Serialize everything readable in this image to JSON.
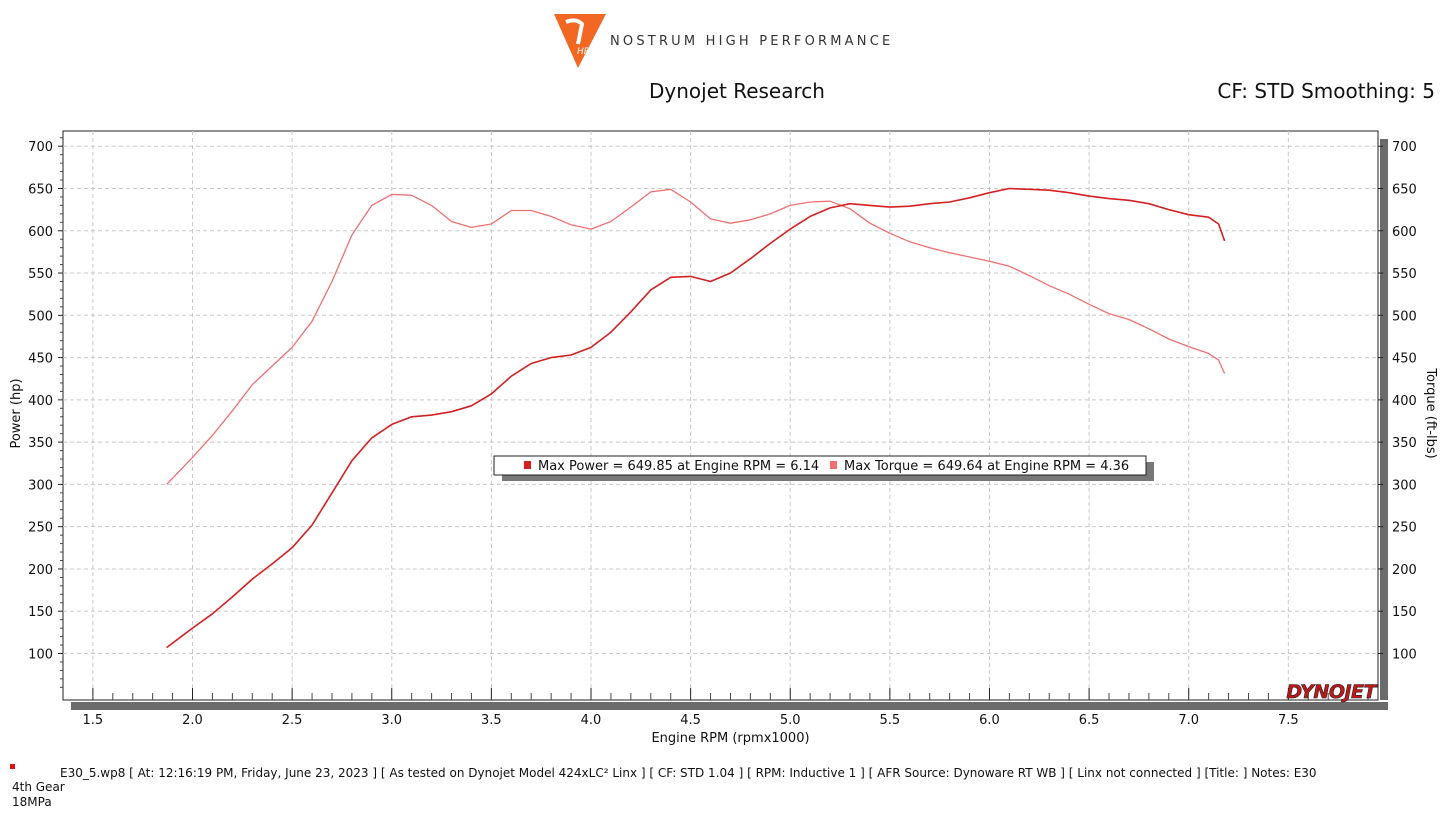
{
  "header": {
    "brand": "NOSTRUM HIGH PERFORMANCE",
    "logo_mark": "HP",
    "title": "Dynojet Research",
    "cf_smoothing": "CF: STD Smoothing: 5"
  },
  "colors": {
    "power": "#d42020",
    "torque": "#f07070",
    "logo": "#f26722",
    "axis_bar": "#6b6b6b",
    "grid": "#c8c8c8"
  },
  "chart_data": {
    "type": "line",
    "xlabel": "Engine RPM (rpmx1000)",
    "ylabel_left": "Power (hp)",
    "ylabel_right": "Torque (ft-lbs)",
    "xlim": [
      1.35,
      7.95
    ],
    "ylim": [
      45,
      718
    ],
    "xticks": [
      1.5,
      2.0,
      2.5,
      3.0,
      3.5,
      4.0,
      4.5,
      5.0,
      5.5,
      6.0,
      6.5,
      7.0,
      7.5
    ],
    "xtick_labels": [
      "1.5",
      "2.0",
      "2.5",
      "3.0",
      "3.5",
      "4.0",
      "4.5",
      "5.0",
      "5.5",
      "6.0",
      "6.5",
      "7.0",
      "7.5"
    ],
    "yticks": [
      100,
      150,
      200,
      250,
      300,
      350,
      400,
      450,
      500,
      550,
      600,
      650,
      700
    ],
    "ytick_labels": [
      "100",
      "150",
      "200",
      "250",
      "300",
      "350",
      "400",
      "450",
      "500",
      "550",
      "600",
      "650",
      "700"
    ],
    "grid": true,
    "legend_position": "center",
    "series": [
      {
        "name": "Power",
        "color": "#d42020",
        "x": [
          1.87,
          2.0,
          2.1,
          2.2,
          2.3,
          2.4,
          2.5,
          2.6,
          2.7,
          2.8,
          2.9,
          3.0,
          3.1,
          3.2,
          3.3,
          3.4,
          3.5,
          3.6,
          3.7,
          3.8,
          3.9,
          4.0,
          4.1,
          4.2,
          4.3,
          4.4,
          4.5,
          4.6,
          4.7,
          4.8,
          4.9,
          5.0,
          5.1,
          5.2,
          5.3,
          5.4,
          5.5,
          5.6,
          5.7,
          5.8,
          5.9,
          6.0,
          6.1,
          6.2,
          6.3,
          6.4,
          6.5,
          6.6,
          6.7,
          6.8,
          6.9,
          7.0,
          7.1,
          7.15,
          7.18
        ],
        "y": [
          107,
          130,
          147,
          167,
          188,
          206,
          225,
          252,
          290,
          328,
          355,
          371,
          380,
          382,
          386,
          393,
          407,
          428,
          443,
          450,
          453,
          462,
          480,
          504,
          530,
          545,
          546,
          540,
          550,
          567,
          585,
          602,
          617,
          627,
          632,
          630,
          628,
          629,
          632,
          634,
          639,
          645,
          650,
          649,
          648,
          645,
          641,
          638,
          636,
          632,
          625,
          619,
          616,
          608,
          588
        ]
      },
      {
        "name": "Torque",
        "color": "#f07070",
        "x": [
          1.87,
          2.0,
          2.1,
          2.2,
          2.3,
          2.4,
          2.5,
          2.6,
          2.7,
          2.8,
          2.9,
          3.0,
          3.1,
          3.2,
          3.3,
          3.4,
          3.5,
          3.6,
          3.7,
          3.8,
          3.9,
          4.0,
          4.1,
          4.2,
          4.3,
          4.4,
          4.5,
          4.6,
          4.7,
          4.8,
          4.9,
          5.0,
          5.1,
          5.2,
          5.3,
          5.4,
          5.5,
          5.6,
          5.7,
          5.8,
          5.9,
          6.0,
          6.1,
          6.2,
          6.3,
          6.4,
          6.5,
          6.6,
          6.7,
          6.8,
          6.9,
          7.0,
          7.1,
          7.15,
          7.18
        ],
        "y": [
          300,
          332,
          358,
          387,
          418,
          440,
          462,
          493,
          540,
          595,
          630,
          643,
          642,
          630,
          611,
          604,
          608,
          624,
          624,
          617,
          607,
          602,
          611,
          628,
          646,
          649,
          634,
          614,
          609,
          613,
          620,
          630,
          634,
          635,
          626,
          609,
          597,
          587,
          580,
          574,
          569,
          564,
          558,
          547,
          535,
          525,
          513,
          502,
          495,
          484,
          472,
          463,
          455,
          447,
          431
        ]
      }
    ],
    "legend_entries": [
      {
        "label": "Max Power = 649.85 at Engine RPM = 6.14",
        "color": "#d42020"
      },
      {
        "label": "Max Torque = 649.64 at Engine RPM = 4.36",
        "color": "#f07070"
      }
    ],
    "watermark": "DYNOJET"
  },
  "footer": {
    "info": "E30_5.wp8 [ At: 12:16:19 PM, Friday, June 23, 2023 ] [ As tested on Dynojet Model 424xLC² Linx ] [ CF: STD 1.04 ] [ RPM: Inductive 1 ] [ AFR Source: Dynoware RT WB ] [ Linx not connected ] [Title: ]  Notes: E30",
    "gear": "4th Gear",
    "fuel": "18MPa"
  }
}
